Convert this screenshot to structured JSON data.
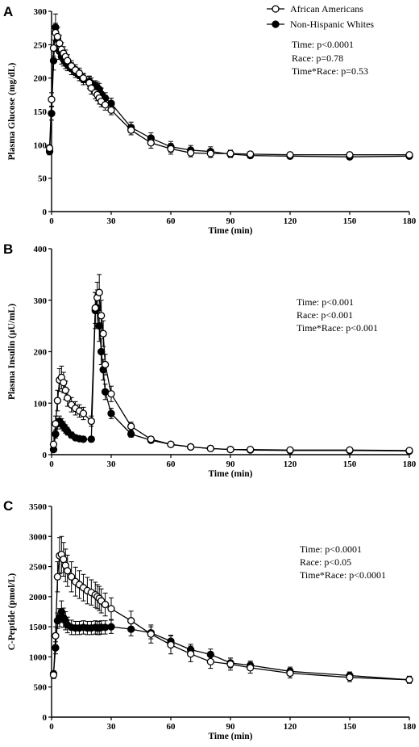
{
  "legend": {
    "items": [
      {
        "label": "African Americans",
        "marker": "open-circle"
      },
      {
        "label": "Non-Hispanic Whites",
        "marker": "filled-circle"
      }
    ],
    "placement": "top-right"
  },
  "colors": {
    "axis": "#000000",
    "marker_stroke": "#000000",
    "open_fill": "#ffffff",
    "filled_fill": "#000000"
  },
  "chart_data": [
    {
      "panel": "A",
      "type": "line",
      "xlabel": "Time (min)",
      "ylabel": "Plasma Glucose (mg/dL)",
      "xlim": [
        0,
        180
      ],
      "ylim": [
        0,
        300
      ],
      "xticks": [
        0,
        30,
        60,
        90,
        120,
        150,
        180
      ],
      "yticks": [
        0,
        50,
        100,
        150,
        200,
        250,
        300
      ],
      "stats": [
        "Time: p<0.0001",
        "Race: p=0.78",
        "Time*Race: p=0.53"
      ],
      "series": [
        {
          "name": "African Americans",
          "marker": "open",
          "x": [
            -1,
            0,
            1,
            2,
            3,
            4,
            5,
            6,
            7,
            8,
            10,
            12,
            14,
            16,
            19,
            20,
            22,
            23,
            24,
            25,
            27,
            30,
            40,
            50,
            60,
            70,
            80,
            90,
            100,
            120,
            150,
            180
          ],
          "y": [
            95,
            168,
            245,
            268,
            262,
            252,
            243,
            237,
            232,
            226,
            218,
            212,
            207,
            200,
            193,
            185,
            178,
            175,
            170,
            165,
            160,
            152,
            122,
            103,
            94,
            88,
            87,
            87,
            86,
            85,
            85,
            85
          ],
          "err": [
            5,
            10,
            12,
            14,
            14,
            12,
            10,
            10,
            10,
            9,
            8,
            8,
            8,
            7,
            9,
            9,
            9,
            9,
            9,
            8,
            8,
            7,
            7,
            8,
            8,
            6,
            6,
            5,
            4,
            4,
            4,
            4
          ]
        },
        {
          "name": "Non-Hispanic Whites",
          "marker": "filled",
          "x": [
            -1,
            0,
            1,
            2,
            3,
            4,
            5,
            6,
            7,
            8,
            10,
            12,
            14,
            16,
            19,
            20,
            22,
            23,
            24,
            25,
            27,
            30,
            40,
            50,
            60,
            70,
            80,
            90,
            100,
            120,
            150,
            180
          ],
          "y": [
            90,
            147,
            226,
            276,
            260,
            240,
            232,
            228,
            224,
            220,
            214,
            209,
            204,
            198,
            195,
            192,
            188,
            186,
            183,
            176,
            170,
            162,
            126,
            110,
            97,
            92,
            90,
            86,
            84,
            83,
            82,
            83
          ],
          "err": [
            5,
            10,
            14,
            20,
            16,
            12,
            11,
            10,
            10,
            9,
            9,
            8,
            8,
            8,
            8,
            8,
            8,
            8,
            9,
            9,
            8,
            8,
            8,
            8,
            8,
            7,
            7,
            5,
            4,
            4,
            4,
            4
          ]
        }
      ]
    },
    {
      "panel": "B",
      "type": "line",
      "xlabel": "Time (min)",
      "ylabel": "Plasma Insulin (µU/mL)",
      "xlim": [
        0,
        180
      ],
      "ylim": [
        0,
        400
      ],
      "xticks": [
        0,
        30,
        60,
        90,
        120,
        150,
        180
      ],
      "yticks": [
        0,
        100,
        200,
        300,
        400
      ],
      "stats": [
        "Time: p<0.001",
        "Race: p<0.001",
        "Time*Race: p<0.001"
      ],
      "series": [
        {
          "name": "African Americans",
          "marker": "open",
          "x": [
            1,
            2,
            3,
            4,
            5,
            6,
            7,
            8,
            10,
            12,
            14,
            16,
            20,
            22,
            23,
            24,
            25,
            26,
            27,
            30,
            40,
            50,
            60,
            70,
            80,
            90,
            100,
            120,
            150,
            180
          ],
          "y": [
            20,
            60,
            105,
            145,
            150,
            140,
            125,
            110,
            97,
            90,
            85,
            80,
            65,
            285,
            305,
            315,
            270,
            235,
            175,
            118,
            55,
            30,
            20,
            15,
            12,
            10,
            10,
            9,
            9,
            8
          ],
          "err": [
            5,
            15,
            20,
            22,
            22,
            20,
            18,
            16,
            14,
            13,
            12,
            12,
            10,
            30,
            30,
            35,
            30,
            25,
            20,
            15,
            8,
            5,
            3,
            3,
            2,
            2,
            2,
            2,
            2,
            2
          ]
        },
        {
          "name": "Non-Hispanic Whites",
          "marker": "filled",
          "x": [
            1,
            2,
            3,
            4,
            5,
            6,
            7,
            8,
            10,
            12,
            14,
            16,
            20,
            22,
            23,
            24,
            25,
            26,
            27,
            30,
            40,
            50,
            60,
            70,
            80,
            90,
            100,
            120,
            150,
            180
          ],
          "y": [
            10,
            40,
            60,
            65,
            60,
            55,
            50,
            45,
            38,
            33,
            31,
            30,
            30,
            280,
            285,
            250,
            200,
            165,
            122,
            80,
            40,
            28,
            20,
            15,
            12,
            10,
            9,
            8,
            8,
            7
          ],
          "err": [
            3,
            8,
            10,
            10,
            10,
            9,
            8,
            7,
            6,
            5,
            5,
            5,
            5,
            35,
            35,
            30,
            25,
            20,
            15,
            10,
            6,
            4,
            3,
            3,
            2,
            2,
            2,
            2,
            2,
            2
          ]
        }
      ]
    },
    {
      "panel": "C",
      "type": "line",
      "xlabel": "Time (min)",
      "ylabel": "C-Peptide (pmol/L)",
      "xlim": [
        0,
        180
      ],
      "ylim": [
        0,
        3500
      ],
      "xticks": [
        0,
        30,
        60,
        90,
        120,
        150,
        180
      ],
      "yticks": [
        0,
        500,
        1000,
        1500,
        2000,
        2500,
        3000,
        3500
      ],
      "stats": [
        "Time: p<0.0001",
        "Race: p<0.05",
        "Time*Race: p<0.0001"
      ],
      "series": [
        {
          "name": "African Americans",
          "marker": "open",
          "x": [
            1,
            2,
            3,
            4,
            5,
            6,
            7,
            8,
            10,
            12,
            14,
            16,
            18,
            20,
            22,
            23,
            24,
            25,
            27,
            30,
            40,
            50,
            60,
            70,
            80,
            90,
            100,
            120,
            150,
            180
          ],
          "y": [
            700,
            1350,
            2330,
            2680,
            2700,
            2620,
            2520,
            2430,
            2330,
            2250,
            2200,
            2150,
            2100,
            2070,
            2030,
            2000,
            1970,
            1930,
            1870,
            1800,
            1600,
            1380,
            1200,
            1050,
            920,
            880,
            820,
            730,
            660,
            620
          ],
          "err": [
            60,
            150,
            250,
            300,
            300,
            280,
            270,
            260,
            250,
            240,
            230,
            220,
            220,
            210,
            210,
            200,
            200,
            200,
            190,
            180,
            160,
            150,
            150,
            130,
            110,
            100,
            90,
            80,
            70,
            60
          ]
        },
        {
          "name": "Non-Hispanic Whites",
          "marker": "filled",
          "x": [
            1,
            2,
            3,
            4,
            5,
            6,
            7,
            8,
            10,
            12,
            14,
            16,
            18,
            20,
            22,
            23,
            24,
            25,
            27,
            30,
            40,
            50,
            60,
            70,
            80,
            90,
            100,
            120,
            150,
            180
          ],
          "y": [
            720,
            1150,
            1600,
            1650,
            1750,
            1650,
            1600,
            1530,
            1490,
            1480,
            1480,
            1490,
            1480,
            1480,
            1490,
            1480,
            1480,
            1490,
            1490,
            1500,
            1460,
            1400,
            1260,
            1120,
            1040,
            900,
            860,
            760,
            690,
            620
          ],
          "err": [
            50,
            100,
            130,
            150,
            180,
            160,
            150,
            130,
            120,
            110,
            110,
            110,
            110,
            110,
            110,
            110,
            110,
            110,
            110,
            110,
            110,
            100,
            100,
            90,
            90,
            80,
            70,
            70,
            60,
            50
          ]
        }
      ]
    }
  ]
}
